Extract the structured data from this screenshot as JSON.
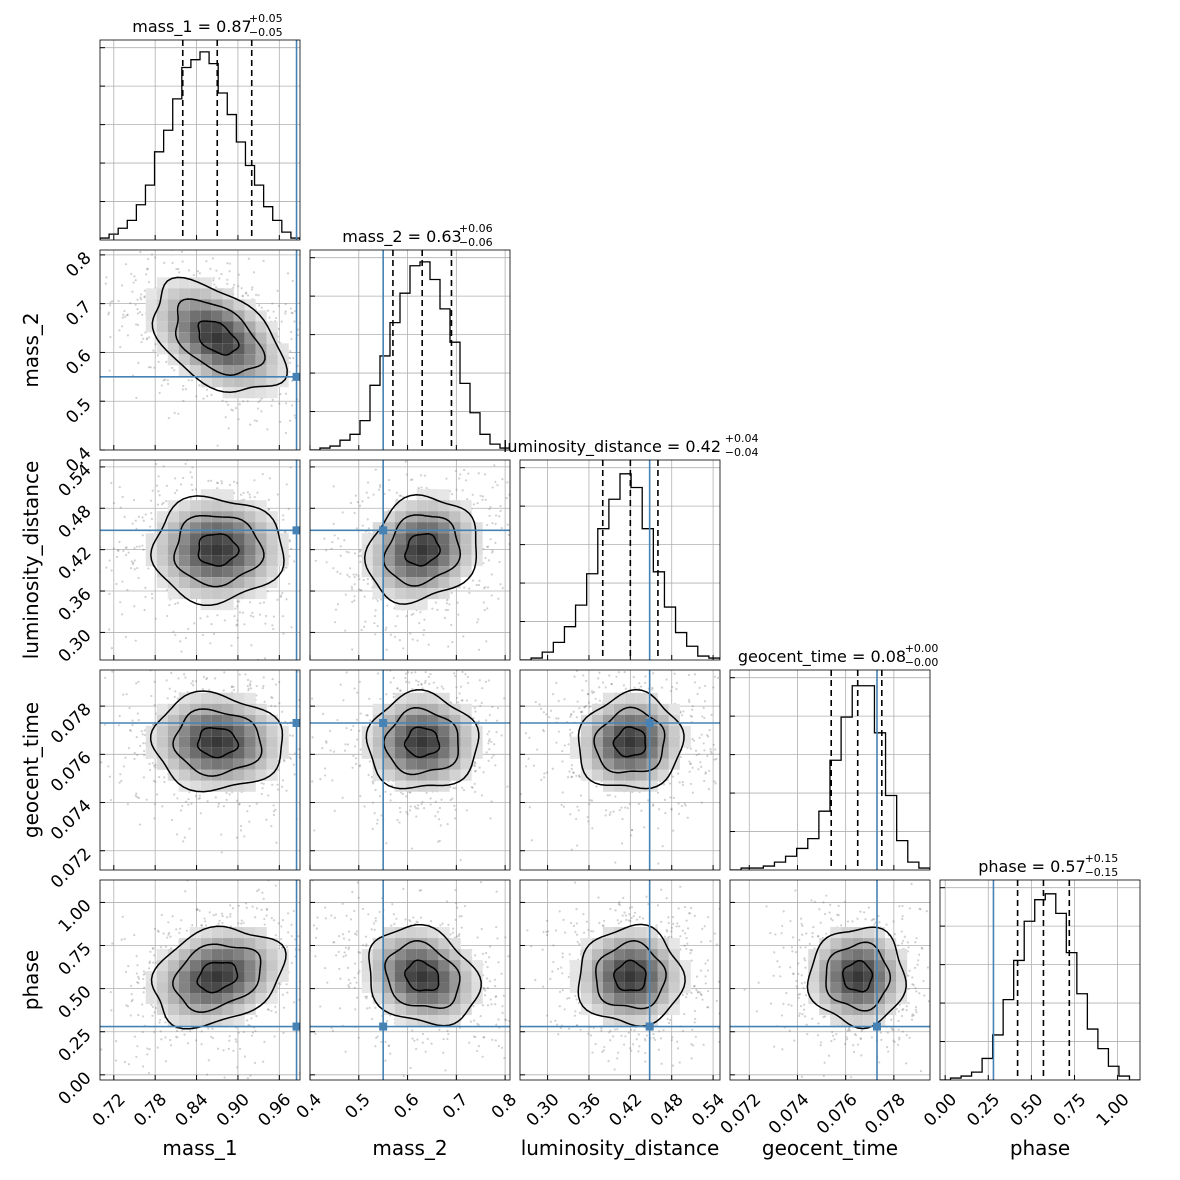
{
  "chart_data": {
    "type": "corner",
    "truth_color": "#4682b4",
    "grid": true,
    "parameters": [
      {
        "name": "mass_1",
        "label": "mass_1",
        "range": [
          0.7,
          0.99
        ],
        "ticks": [
          "0.72",
          "0.78",
          "0.84",
          "0.90",
          "0.96"
        ],
        "tick_values": [
          0.72,
          0.78,
          0.84,
          0.9,
          0.96
        ],
        "median": 0.87,
        "lower": 0.82,
        "upper": 0.92,
        "truth": 0.985,
        "title": {
          "main": "mass_1 = 0.87",
          "sup": "+0.05",
          "sub": "−0.05"
        },
        "hist": [
          0.01,
          0.03,
          0.06,
          0.1,
          0.18,
          0.28,
          0.45,
          0.56,
          0.72,
          0.88,
          0.92,
          0.96,
          0.9,
          0.75,
          0.64,
          0.5,
          0.38,
          0.28,
          0.17,
          0.1,
          0.04,
          0.01
        ]
      },
      {
        "name": "mass_2",
        "label": "mass_2",
        "range": [
          0.4,
          0.81
        ],
        "ticks": [
          "0.4",
          "0.5",
          "0.6",
          "0.7",
          "0.8"
        ],
        "tick_values": [
          0.4,
          0.5,
          0.6,
          0.7,
          0.8
        ],
        "median": 0.63,
        "lower": 0.57,
        "upper": 0.69,
        "truth": 0.55,
        "title": {
          "main": "mass_2 = 0.63",
          "sup": "+0.06",
          "sub": "−0.06"
        },
        "hist": [
          0.0,
          0.01,
          0.02,
          0.05,
          0.08,
          0.15,
          0.33,
          0.48,
          0.65,
          0.8,
          0.94,
          0.96,
          0.87,
          0.72,
          0.55,
          0.34,
          0.19,
          0.08,
          0.03,
          0.01
        ]
      },
      {
        "name": "luminosity_distance",
        "label": "luminosity_distance",
        "range": [
          0.26,
          0.55
        ],
        "ticks": [
          "0.30",
          "0.36",
          "0.42",
          "0.48",
          "0.54"
        ],
        "tick_values": [
          0.3,
          0.36,
          0.42,
          0.48,
          0.54
        ],
        "median": 0.42,
        "lower": 0.38,
        "upper": 0.46,
        "truth": 0.448,
        "title": {
          "main": "luminosity_distance = 0.42",
          "sup": "+0.04",
          "sub": "−0.04"
        },
        "hist": [
          0.0,
          0.01,
          0.04,
          0.09,
          0.17,
          0.28,
          0.44,
          0.67,
          0.82,
          0.95,
          0.88,
          0.67,
          0.45,
          0.27,
          0.14,
          0.07,
          0.02,
          0.01
        ]
      },
      {
        "name": "geocent_time",
        "label": "geocent_time",
        "range": [
          0.0712,
          0.0795
        ],
        "ticks": [
          "0.072",
          "0.074",
          "0.076",
          "0.078"
        ],
        "tick_values": [
          0.072,
          0.074,
          0.076,
          0.078
        ],
        "median": 0.0765,
        "lower": 0.0754,
        "upper": 0.0775,
        "truth": 0.0773,
        "title": {
          "main": "geocent_time = 0.08",
          "sup": "+0.00",
          "sub": "−0.00"
        },
        "hist": [
          0.0,
          0.01,
          0.01,
          0.02,
          0.04,
          0.07,
          0.11,
          0.16,
          0.3,
          0.56,
          0.78,
          0.94,
          0.94,
          0.7,
          0.38,
          0.15,
          0.04,
          0.01
        ]
      },
      {
        "name": "phase",
        "label": "phase",
        "range": [
          -0.03,
          1.13
        ],
        "ticks": [
          "0.00",
          "0.25",
          "0.50",
          "0.75",
          "1.00"
        ],
        "tick_values": [
          0.0,
          0.25,
          0.5,
          0.75,
          1.0
        ],
        "median": 0.57,
        "lower": 0.42,
        "upper": 0.72,
        "truth": 0.28,
        "title": {
          "main": "phase = 0.57",
          "sup": "+0.15",
          "sub": "−0.15"
        },
        "hist": [
          0.0,
          0.01,
          0.02,
          0.04,
          0.11,
          0.23,
          0.41,
          0.61,
          0.81,
          0.92,
          0.95,
          0.85,
          0.65,
          0.44,
          0.26,
          0.16,
          0.07,
          0.02,
          0.0
        ]
      }
    ],
    "correlations": [
      [
        1.0,
        -0.45,
        0.0,
        -0.05,
        0.25
      ],
      [
        -0.45,
        1.0,
        0.15,
        0.0,
        -0.2
      ],
      [
        0.0,
        0.15,
        1.0,
        0.05,
        0.0
      ],
      [
        -0.05,
        0.0,
        0.05,
        1.0,
        0.0
      ],
      [
        0.25,
        -0.2,
        0.0,
        0.0,
        1.0
      ]
    ]
  }
}
